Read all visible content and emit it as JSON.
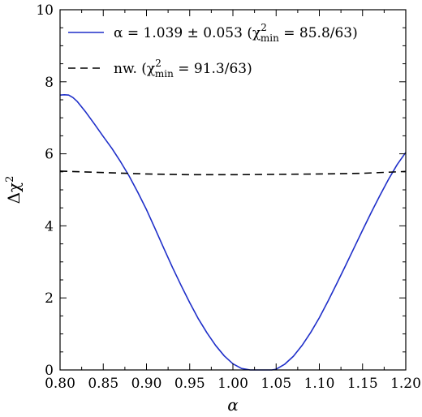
{
  "chart_data": {
    "type": "line",
    "title": "",
    "xlabel": "α",
    "ylabel": "Δχ²",
    "xlim": [
      0.8,
      1.2
    ],
    "ylim": [
      0,
      10
    ],
    "x_ticks": [
      "0.80",
      "0.85",
      "0.90",
      "0.95",
      "1.00",
      "1.05",
      "1.10",
      "1.15",
      "1.20"
    ],
    "y_ticks": [
      "0",
      "2",
      "4",
      "6",
      "8",
      "10"
    ],
    "grid": false,
    "legend_position": "top-right",
    "series": [
      {
        "name": "α = 1.039 ± 0.053 (χ²min = 85.8/63)",
        "color": "#1f2fc9",
        "style": "solid",
        "x": [
          0.8,
          0.805,
          0.81,
          0.815,
          0.82,
          0.83,
          0.84,
          0.85,
          0.86,
          0.87,
          0.88,
          0.89,
          0.9,
          0.91,
          0.92,
          0.93,
          0.94,
          0.95,
          0.96,
          0.97,
          0.98,
          0.99,
          1.0,
          1.01,
          1.02,
          1.03,
          1.035,
          1.04,
          1.045,
          1.05,
          1.06,
          1.07,
          1.08,
          1.09,
          1.1,
          1.11,
          1.12,
          1.13,
          1.14,
          1.15,
          1.16,
          1.17,
          1.18,
          1.19,
          1.2
        ],
        "y": [
          7.63,
          7.64,
          7.63,
          7.56,
          7.45,
          7.15,
          6.82,
          6.48,
          6.15,
          5.78,
          5.38,
          4.93,
          4.45,
          3.92,
          3.38,
          2.85,
          2.35,
          1.87,
          1.42,
          1.03,
          0.68,
          0.39,
          0.17,
          0.04,
          0.0,
          0.0,
          0.0,
          0.0,
          0.0,
          0.02,
          0.16,
          0.38,
          0.68,
          1.04,
          1.45,
          1.91,
          2.39,
          2.88,
          3.38,
          3.88,
          4.37,
          4.84,
          5.29,
          5.7,
          6.04
        ]
      },
      {
        "name": "nw. (χ²min = 91.3/63)",
        "color": "#000000",
        "style": "dashed",
        "x": [
          0.8,
          0.85,
          0.9,
          0.95,
          1.0,
          1.05,
          1.1,
          1.15,
          1.2
        ],
        "y": [
          5.52,
          5.48,
          5.44,
          5.42,
          5.42,
          5.43,
          5.44,
          5.46,
          5.51
        ]
      }
    ],
    "legend_entries": [
      {
        "prefix": "α = 1.039 ± 0.053 (χ",
        "sup": "2",
        "sub": "min",
        "suffix": " = 85.8/63)"
      },
      {
        "prefix": "nw. (χ",
        "sup": "2",
        "sub": "min",
        "suffix": " = 91.3/63)"
      }
    ]
  }
}
